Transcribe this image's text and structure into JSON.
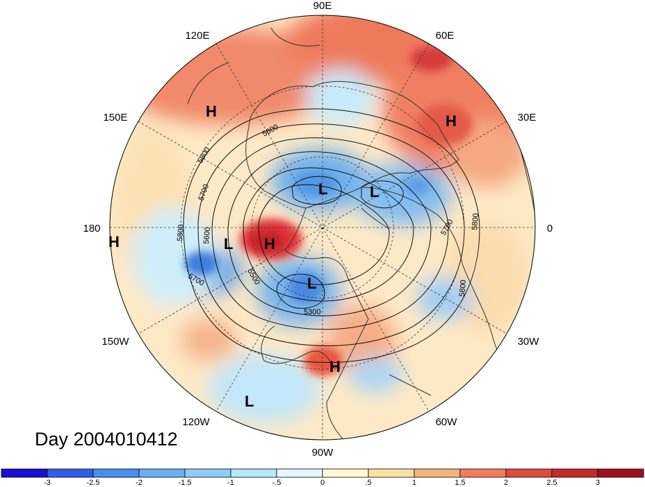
{
  "title": "Day 2004010412",
  "longitude_labels": [
    {
      "text": "90E"
    },
    {
      "text": "60E"
    },
    {
      "text": "120E"
    },
    {
      "text": "30E"
    },
    {
      "text": "150E"
    },
    {
      "text": "180"
    },
    {
      "text": "0"
    },
    {
      "text": "150W"
    },
    {
      "text": "30W"
    },
    {
      "text": "120W"
    },
    {
      "text": "60W"
    },
    {
      "text": "90W"
    }
  ],
  "pressure_centers": [
    {
      "type": "H"
    },
    {
      "type": "H"
    },
    {
      "type": "H"
    },
    {
      "type": "H"
    },
    {
      "type": "H"
    },
    {
      "type": "L"
    },
    {
      "type": "L"
    },
    {
      "type": "L"
    },
    {
      "type": "L"
    },
    {
      "type": "L"
    }
  ],
  "contour_labels": [
    "5600",
    "5800",
    "5700",
    "5600",
    "5800",
    "5700",
    "5500",
    "5300",
    "5700",
    "5800",
    "5800"
  ],
  "colorbar": {
    "labels": [
      "-3",
      "-2.5",
      "-2",
      "-1.5",
      "-1",
      "-.5",
      "0",
      ".5",
      "1",
      "1.5",
      "2",
      "2.5",
      "3"
    ],
    "colors": [
      "#1a0fd6",
      "#2e5fe8",
      "#4a8ff0",
      "#6aaef5",
      "#8fcdf8",
      "#b6e8fb",
      "#e4f7fd",
      "#fff8d6",
      "#fbe1a3",
      "#f6b37c",
      "#f07e5c",
      "#e04a3c",
      "#c42a2a",
      "#a0101e"
    ]
  },
  "colors": {
    "ocean_neutral": "#fdf1dc",
    "coast": "#333333"
  }
}
